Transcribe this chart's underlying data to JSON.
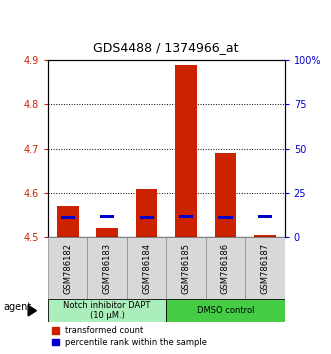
{
  "title": "GDS4488 / 1374966_at",
  "samples": [
    "GSM786182",
    "GSM786183",
    "GSM786184",
    "GSM786185",
    "GSM786186",
    "GSM786187"
  ],
  "red_values": [
    4.57,
    4.52,
    4.61,
    4.89,
    4.69,
    4.505
  ],
  "blue_values": [
    4.545,
    4.546,
    4.545,
    4.547,
    4.545,
    4.546
  ],
  "ylim": [
    4.5,
    4.9
  ],
  "yticks_left": [
    4.5,
    4.6,
    4.7,
    4.8,
    4.9
  ],
  "ytick_labels_right": [
    "0",
    "25",
    "50",
    "75",
    "100%"
  ],
  "bar_bottom": 4.5,
  "bar_width": 0.55,
  "group1_label": "Notch inhibitor DAPT\n(10 μM.)",
  "group2_label": "DMSO control",
  "group1_color": "#aaeebb",
  "group2_color": "#44cc44",
  "legend_red": "transformed count",
  "legend_blue": "percentile rank within the sample",
  "agent_label": "agent",
  "red_color": "#cc2200",
  "blue_color": "#0000cc",
  "bg_color": "#d8d8d8",
  "title_fontsize": 9,
  "tick_fontsize": 7,
  "label_fontsize": 6,
  "legend_fontsize": 6
}
